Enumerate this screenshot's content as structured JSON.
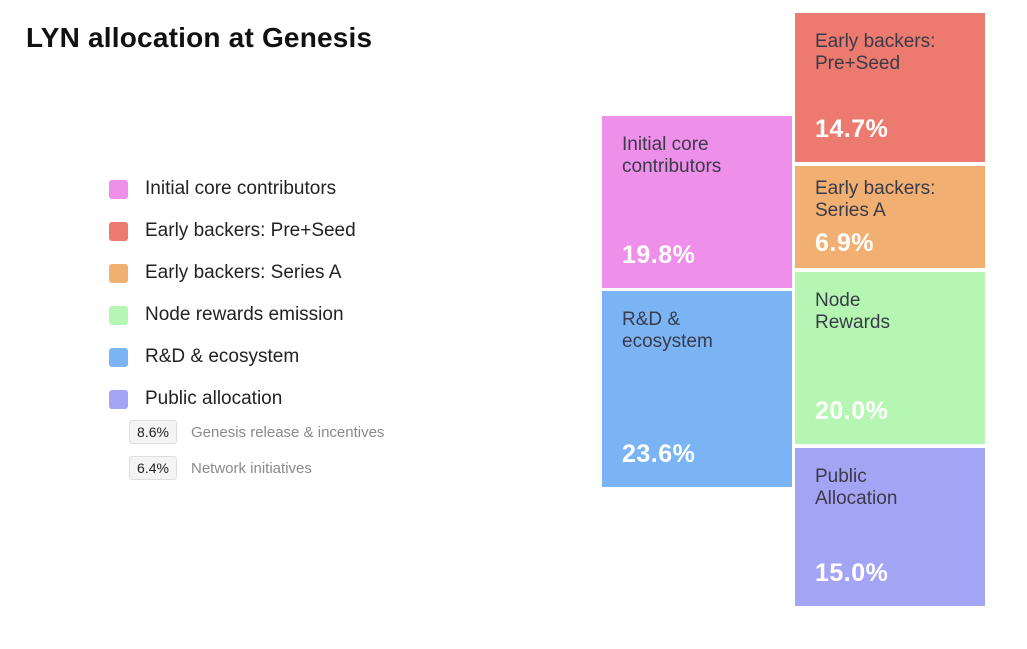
{
  "title": "LYN allocation at Genesis",
  "legend": [
    {
      "label": "Initial core contributors",
      "color": "#ee8fea"
    },
    {
      "label": "Early backers: Pre+Seed",
      "color": "#ec7a6e"
    },
    {
      "label": "Early backers: Series A",
      "color": "#f1b072"
    },
    {
      "label": "Node rewards emission",
      "color": "#b5f7b2"
    },
    {
      "label": "R&D & ecosystem",
      "color": "#7ab4f5"
    },
    {
      "label": "Public allocation",
      "color": "#a4a4f5"
    }
  ],
  "sub_allocations": [
    {
      "badge": "8.6%",
      "label": "Genesis release & incentives"
    },
    {
      "badge": "6.4%",
      "label": "Network initiatives"
    }
  ],
  "chart_data": {
    "type": "treemap",
    "title": "LYN allocation at Genesis",
    "unit": "%",
    "series": [
      {
        "name": "Initial core contributors",
        "block_label": "Initial core\ncontributors",
        "value": 19.8,
        "value_label": "19.8%",
        "color": "#ee8fea"
      },
      {
        "name": "R&D & ecosystem",
        "block_label": "R&D &\necosystem",
        "value": 23.6,
        "value_label": "23.6%",
        "color": "#7ab4f5"
      },
      {
        "name": "Early backers: Pre+Seed",
        "block_label": "Early backers:\nPre+Seed",
        "value": 14.7,
        "value_label": "14.7%",
        "color": "#ec7a6e"
      },
      {
        "name": "Early backers: Series A",
        "block_label": "Early backers:\nSeries A",
        "value": 6.9,
        "value_label": "6.9%",
        "color": "#f1b072"
      },
      {
        "name": "Node rewards emission",
        "block_label": "Node\nRewards",
        "value": 20.0,
        "value_label": "20.0%",
        "color": "#b5f7b2"
      },
      {
        "name": "Public allocation",
        "block_label": "Public\nAllocation",
        "value": 15.0,
        "value_label": "15.0%",
        "color": "#a4a4f5"
      }
    ]
  }
}
